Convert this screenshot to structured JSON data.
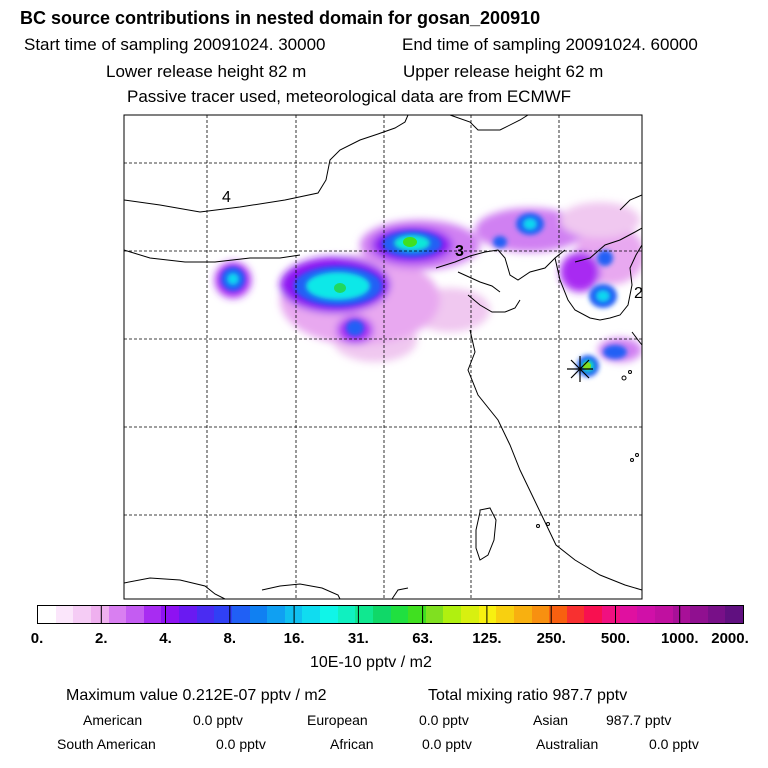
{
  "header": {
    "title": "BC  source contributions in nested domain for gosan_200910",
    "start_time": "Start time of sampling 20091024. 30000",
    "end_time": "End time of sampling 20091024. 60000",
    "lower_height": "Lower release height   82 m",
    "upper_height": "Upper release height   62 m",
    "tracer_note": "Passive tracer used, meteorological data are from ECMWF"
  },
  "map": {
    "labels": [
      {
        "name": "map-label-4",
        "text": "4"
      },
      {
        "name": "map-label-3",
        "text": "3"
      },
      {
        "name": "map-label-2",
        "text": "2"
      }
    ],
    "receptor_marker": "asterisk-marker-icon"
  },
  "colorbar": {
    "colors": [
      "#ffffff",
      "#fbe6fb",
      "#f5ccf5",
      "#efb0ef",
      "#d97ff1",
      "#c45cf2",
      "#a82cf2",
      "#8e12f2",
      "#6a1af2",
      "#4a2cf2",
      "#3040f5",
      "#2060f5",
      "#1080f2",
      "#10a0f2",
      "#10c0f0",
      "#10dcf0",
      "#10f5e8",
      "#10f0c0",
      "#10e890",
      "#10d868",
      "#20e040",
      "#40e020",
      "#80e020",
      "#b0f010",
      "#d8f010",
      "#f8f010",
      "#f8d010",
      "#f8b010",
      "#f89010",
      "#f86010",
      "#f83030",
      "#f81050",
      "#f01080",
      "#e010a0",
      "#d010a8",
      "#c010a0",
      "#a81098",
      "#901090",
      "#781088",
      "#601080"
    ],
    "tick_labels": [
      "0.",
      "2.",
      "4.",
      "8.",
      "16.",
      "31.",
      "63.",
      "125.",
      "250.",
      "500.",
      "1000.",
      "2000."
    ],
    "units": "10E-10 pptv / m2"
  },
  "summary": {
    "max_label": "Maximum value  0.212E-07 pptv / m2",
    "total_label": "Total mixing ratio      987.7 pptv",
    "regions_row1": [
      {
        "name": "American",
        "value": "0.0 pptv"
      },
      {
        "name": "European",
        "value": "0.0 pptv"
      },
      {
        "name": "Asian",
        "value": "987.7 pptv"
      }
    ],
    "regions_row2": [
      {
        "name": "South American",
        "value": "0.0 pptv"
      },
      {
        "name": "African",
        "value": "0.0 pptv"
      },
      {
        "name": "Australian",
        "value": "0.0 pptv"
      }
    ]
  }
}
